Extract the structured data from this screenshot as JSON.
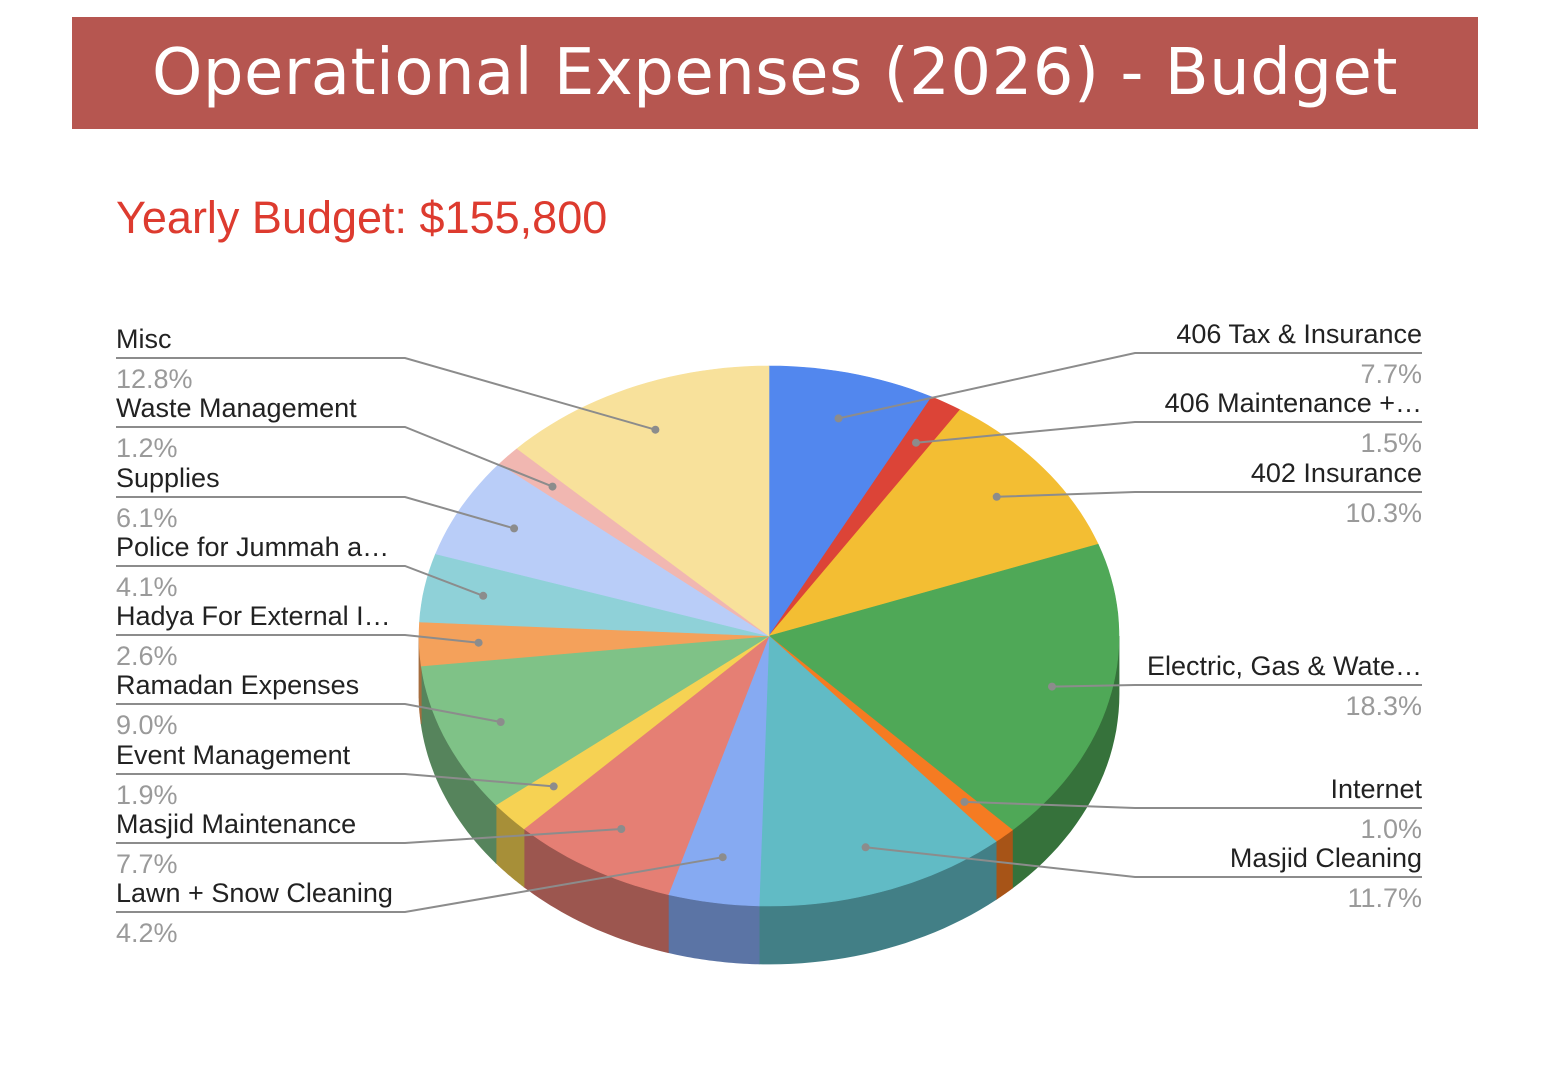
{
  "banner": {
    "title": "Operational Expenses (2026) - Budget"
  },
  "colors": {
    "banner_bg": "#b65650",
    "subtitle": "#dd3b2f"
  },
  "chart_data": {
    "type": "pie",
    "title": "Yearly Budget: $155,800",
    "style": "3d",
    "legend": "labeled-callouts",
    "slices": [
      {
        "label": "406 Tax & Insurance",
        "percent": "7.7%",
        "value": 7.7,
        "color": "#5287ee"
      },
      {
        "label": "406 Maintenance +…",
        "percent": "1.5%",
        "value": 1.5,
        "color": "#dc4437"
      },
      {
        "label": "402 Insurance",
        "percent": "10.3%",
        "value": 10.3,
        "color": "#f3be33"
      },
      {
        "label": "Electric, Gas & Wate…",
        "percent": "18.3%",
        "value": 18.3,
        "color": "#4fa857"
      },
      {
        "label": "Internet",
        "percent": "1.0%",
        "value": 1.0,
        "color": "#f57b22"
      },
      {
        "label": "Masjid Cleaning",
        "percent": "11.7%",
        "value": 11.7,
        "color": "#61bbc5"
      },
      {
        "label": "Lawn + Snow Cleaning",
        "percent": "4.2%",
        "value": 4.2,
        "color": "#86aaf2"
      },
      {
        "label": "Masjid Maintenance",
        "percent": "7.7%",
        "value": 7.7,
        "color": "#e57f74"
      },
      {
        "label": "Event Management",
        "percent": "1.9%",
        "value": 1.9,
        "color": "#f6d253"
      },
      {
        "label": "Ramadan Expenses",
        "percent": "9.0%",
        "value": 9.0,
        "color": "#7fc287"
      },
      {
        "label": "Hadya For External I…",
        "percent": "2.6%",
        "value": 2.6,
        "color": "#f4a15b"
      },
      {
        "label": "Police for Jummah a…",
        "percent": "4.1%",
        "value": 4.1,
        "color": "#8fd1d8"
      },
      {
        "label": "Supplies",
        "percent": "6.1%",
        "value": 6.1,
        "color": "#b9cdf8"
      },
      {
        "label": "Waste Management",
        "percent": "1.2%",
        "value": 1.2,
        "color": "#f1b7b1"
      },
      {
        "label": "Misc",
        "percent": "12.8%",
        "value": 12.8,
        "color": "#f8e19b"
      }
    ]
  }
}
